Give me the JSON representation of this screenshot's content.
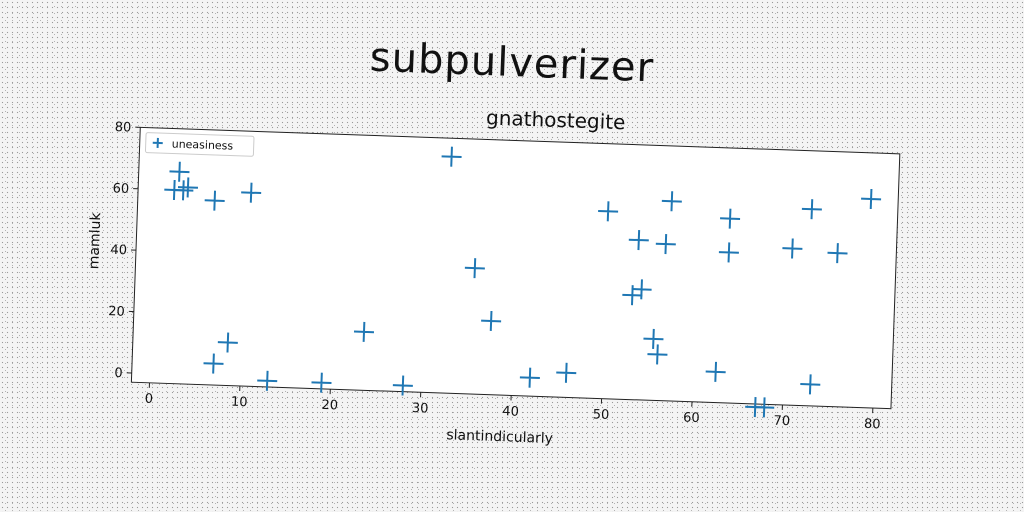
{
  "suptitle": "subpulverizer",
  "chart_data": {
    "type": "scatter",
    "title": "gnathostegite",
    "xlabel": "slantindicularly",
    "ylabel": "mamluk",
    "xlim": [
      -2,
      82
    ],
    "ylim": [
      -3,
      80
    ],
    "xticks": [
      0,
      10,
      20,
      30,
      40,
      50,
      60,
      70,
      80
    ],
    "yticks": [
      0,
      20,
      40,
      60,
      80
    ],
    "grid": false,
    "legend_position": "top-left",
    "series": [
      {
        "name": "uneasiness",
        "color": "#1f77b4",
        "marker": "plus",
        "points": [
          [
            2.5,
            66
          ],
          [
            2,
            60
          ],
          [
            3,
            60
          ],
          [
            3.5,
            61
          ],
          [
            6.5,
            57
          ],
          [
            10.5,
            60
          ],
          [
            32.5,
            74
          ],
          [
            7,
            4
          ],
          [
            8.5,
            11
          ],
          [
            13,
            -1
          ],
          [
            19,
            -1
          ],
          [
            23.5,
            16
          ],
          [
            28,
            -1
          ],
          [
            35.5,
            38
          ],
          [
            37.5,
            21
          ],
          [
            42,
            3
          ],
          [
            46,
            5
          ],
          [
            50,
            58
          ],
          [
            53.5,
            49
          ],
          [
            53,
            31
          ],
          [
            54,
            33
          ],
          [
            55.5,
            17
          ],
          [
            56,
            12
          ],
          [
            56.5,
            48
          ],
          [
            57,
            62
          ],
          [
            62.5,
            7
          ],
          [
            63.5,
            57
          ],
          [
            63.5,
            46
          ],
          [
            67,
            -4
          ],
          [
            68,
            -4
          ],
          [
            70.5,
            48
          ],
          [
            72.5,
            61
          ],
          [
            73,
            4
          ],
          [
            75.5,
            47
          ],
          [
            79,
            65
          ]
        ]
      }
    ]
  }
}
